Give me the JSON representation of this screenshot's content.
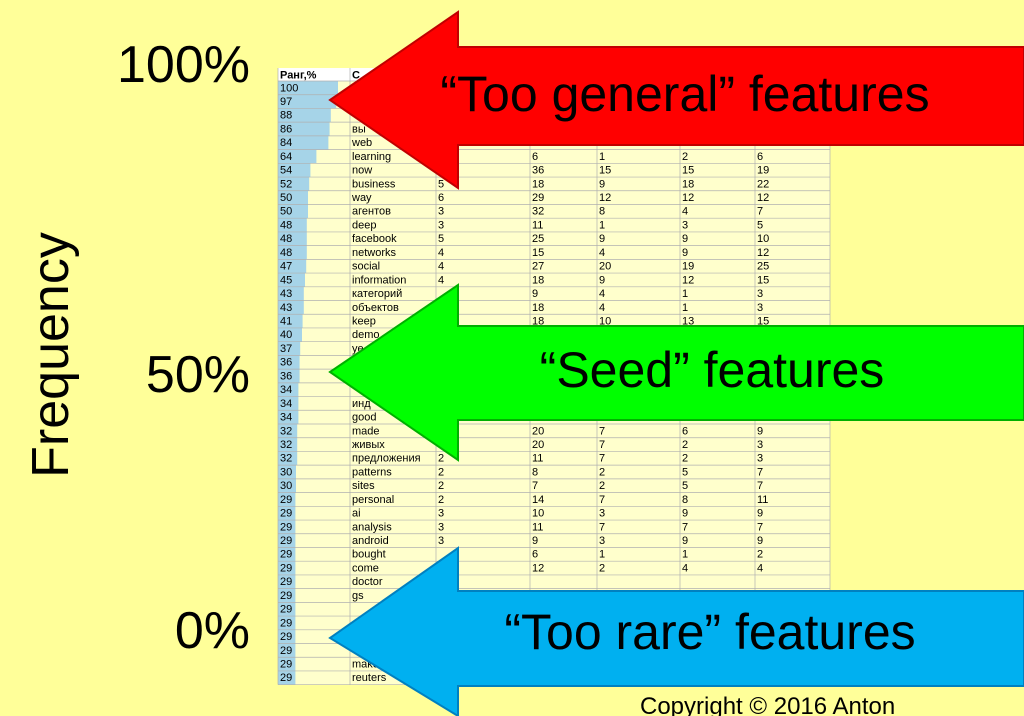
{
  "axis": {
    "label": "Frequency",
    "marks": [
      "100%",
      "50%",
      "0%"
    ]
  },
  "table": {
    "header": [
      "Ранг,%",
      "С"
    ],
    "rows": [
      {
        "rank": 100
      },
      {
        "rank": 97
      },
      {
        "rank": 88
      },
      {
        "rank": 86,
        "word": "вы"
      },
      {
        "rank": 84,
        "word": "web"
      },
      {
        "rank": 64,
        "word": "learning",
        "cols": [
          null,
          6,
          1,
          2,
          6
        ]
      },
      {
        "rank": 54,
        "word": "now",
        "cols": [
          null,
          36,
          15,
          15,
          19
        ]
      },
      {
        "rank": 52,
        "word": "business",
        "cols": [
          5,
          18,
          9,
          18,
          22
        ]
      },
      {
        "rank": 50,
        "word": "way",
        "cols": [
          6,
          29,
          12,
          12,
          12
        ]
      },
      {
        "rank": 50,
        "word": "агентов",
        "cols": [
          3,
          32,
          8,
          4,
          7
        ]
      },
      {
        "rank": 48,
        "word": "deep",
        "cols": [
          3,
          11,
          1,
          3,
          5
        ]
      },
      {
        "rank": 48,
        "word": "facebook",
        "cols": [
          5,
          25,
          9,
          9,
          10
        ]
      },
      {
        "rank": 48,
        "word": "networks",
        "cols": [
          4,
          15,
          4,
          9,
          12
        ]
      },
      {
        "rank": 47,
        "word": "social",
        "cols": [
          4,
          27,
          20,
          19,
          25
        ]
      },
      {
        "rank": 45,
        "word": "information",
        "cols": [
          4,
          18,
          9,
          12,
          15
        ]
      },
      {
        "rank": 43,
        "word": "категорий",
        "cols": [
          null,
          9,
          4,
          1,
          3
        ]
      },
      {
        "rank": 43,
        "word": "объектов",
        "cols": [
          null,
          18,
          4,
          1,
          3
        ]
      },
      {
        "rank": 41,
        "word": "keep",
        "cols": [
          null,
          18,
          10,
          13,
          15
        ]
      },
      {
        "rank": 40,
        "word": "demo"
      },
      {
        "rank": 37,
        "word": "ye"
      },
      {
        "rank": 36
      },
      {
        "rank": 36
      },
      {
        "rank": 34
      },
      {
        "rank": 34,
        "word": "инд"
      },
      {
        "rank": 34,
        "word": "good"
      },
      {
        "rank": 32,
        "word": "made",
        "cols": [
          null,
          20,
          7,
          6,
          9
        ]
      },
      {
        "rank": 32,
        "word": "живых",
        "cols": [
          null,
          20,
          7,
          2,
          3
        ]
      },
      {
        "rank": 32,
        "word": "предложения",
        "cols": [
          2,
          11,
          7,
          2,
          3
        ]
      },
      {
        "rank": 30,
        "word": "patterns",
        "cols": [
          2,
          8,
          2,
          5,
          7
        ]
      },
      {
        "rank": 30,
        "word": "sites",
        "cols": [
          2,
          7,
          2,
          5,
          7
        ]
      },
      {
        "rank": 29,
        "word": "personal",
        "cols": [
          2,
          14,
          7,
          8,
          11
        ]
      },
      {
        "rank": 29,
        "word": "ai",
        "cols": [
          3,
          10,
          3,
          9,
          9
        ]
      },
      {
        "rank": 29,
        "word": "analysis",
        "cols": [
          3,
          11,
          7,
          7,
          7
        ]
      },
      {
        "rank": 29,
        "word": "android",
        "cols": [
          3,
          9,
          3,
          9,
          9
        ]
      },
      {
        "rank": 29,
        "word": "bought",
        "cols": [
          null,
          6,
          1,
          1,
          2
        ]
      },
      {
        "rank": 29,
        "word": "come",
        "cols": [
          null,
          12,
          2,
          4,
          4
        ]
      },
      {
        "rank": 29,
        "word": "doctor"
      },
      {
        "rank": 29,
        "word": "gs"
      },
      {
        "rank": 29
      },
      {
        "rank": 29
      },
      {
        "rank": 29
      },
      {
        "rank": 29
      },
      {
        "rank": 29,
        "word": "make"
      },
      {
        "rank": 29,
        "word": "reuters"
      }
    ]
  },
  "arrows": [
    "“Too general” features",
    "“Seed” features",
    "“Too rare” features"
  ],
  "footer": "Copyright © 2016 Anton"
}
